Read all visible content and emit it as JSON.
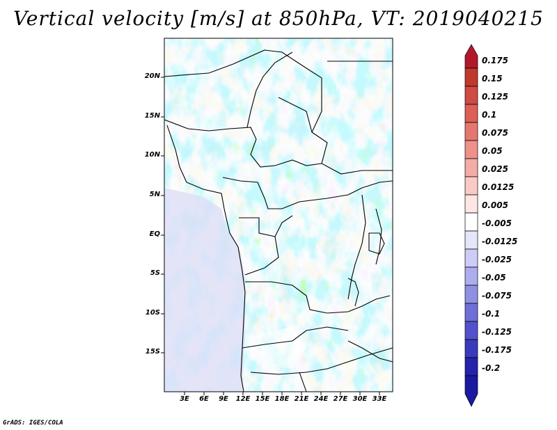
{
  "title": "Vertical velocity [m/s] at 850hPa, VT: 2019040215",
  "latitude_labels": [
    "20N",
    "15N",
    "10N",
    "5N",
    "EQ",
    "5S",
    "10S",
    "15S"
  ],
  "longitude_labels": [
    "3E",
    "6E",
    "9E",
    "12E",
    "15E",
    "18E",
    "21E",
    "24E",
    "27E",
    "30E",
    "33E"
  ],
  "colorbar": {
    "labels": [
      "0.175",
      "0.15",
      "0.125",
      "0.1",
      "0.075",
      "0.05",
      "0.025",
      "0.0125",
      "0.005",
      "-0.005",
      "-0.0125",
      "-0.025",
      "-0.05",
      "-0.075",
      "-0.1",
      "-0.125",
      "-0.175",
      "-0.2"
    ],
    "colors": [
      "#b2182b",
      "#c0392b",
      "#cf4b43",
      "#dc5f58",
      "#e6776f",
      "#ee918a",
      "#f4aca6",
      "#f9c9c5",
      "#fde6e4",
      "#ffffff",
      "#e6e6fb",
      "#ccccf6",
      "#adadee",
      "#8f8fe4",
      "#6f6fd8",
      "#5252cc",
      "#3a3abd",
      "#2323ac",
      "#1a1aa0"
    ]
  },
  "credit": "GrADS: IGES/COLA"
}
